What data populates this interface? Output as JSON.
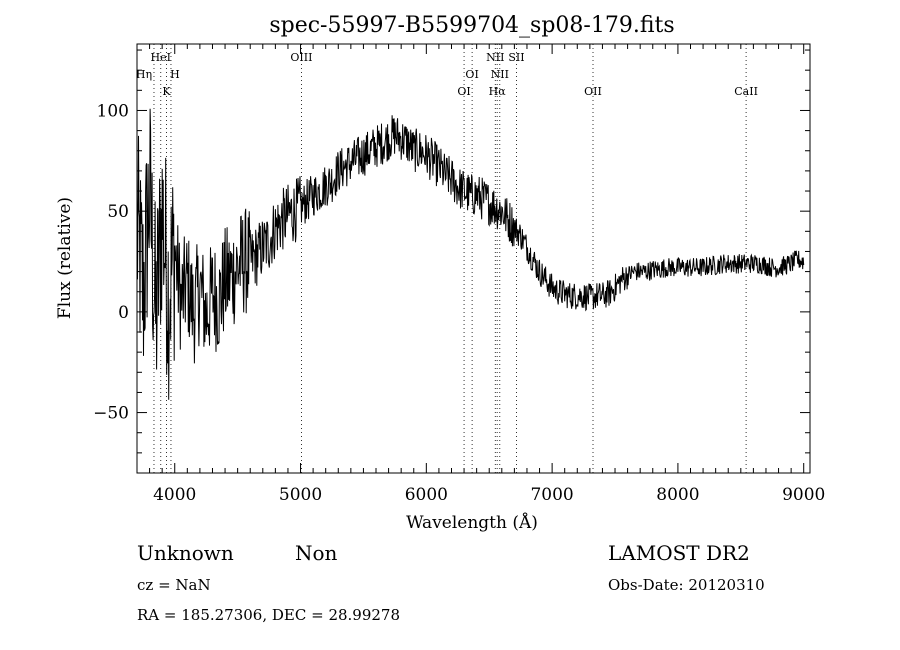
{
  "chart_data": {
    "type": "line",
    "title": "spec-55997-B5599704_sp08-179.fits",
    "xlabel": "Wavelength (Å)",
    "ylabel": "Flux (relative)",
    "xlim": [
      3700,
      9050
    ],
    "ylim": [
      -80,
      133
    ],
    "x_ticks": [
      4000,
      5000,
      6000,
      7000,
      8000,
      9000
    ],
    "y_ticks": [
      -50,
      0,
      50,
      100
    ],
    "grid": false,
    "line_color": "#000000",
    "spectral_lines": [
      {
        "label": "Hη",
        "wavelength": 3835
      },
      {
        "label": "HeI",
        "wavelength": 3889
      },
      {
        "label": "H",
        "wavelength": 3970
      },
      {
        "label": "K",
        "wavelength": 3934
      },
      {
        "label": "OIII",
        "wavelength": 5007
      },
      {
        "label": "OI",
        "wavelength": 6300
      },
      {
        "label": "OI",
        "wavelength": 6364
      },
      {
        "label": "NII",
        "wavelength": 6548
      },
      {
        "label": "Hα",
        "wavelength": 6563
      },
      {
        "label": "NII",
        "wavelength": 6584
      },
      {
        "label": "SII",
        "wavelength": 6717
      },
      {
        "label": "OII",
        "wavelength": 7325
      },
      {
        "label": "CaII",
        "wavelength": 8542
      }
    ],
    "series": [
      {
        "x": [
          3700,
          3750,
          3800,
          3850,
          3900,
          3950,
          4000,
          4050,
          4100,
          4150,
          4200,
          4250,
          4300,
          4350,
          4400,
          4450,
          4500,
          4550,
          4600,
          4650,
          4700,
          4750,
          4800,
          4850,
          4900,
          4950,
          5000,
          5050,
          5100,
          5150,
          5200,
          5250,
          5300,
          5350,
          5400,
          5450,
          5500,
          5550,
          5600,
          5650,
          5700,
          5750,
          5800,
          5850,
          5900,
          5950,
          6000,
          6050,
          6100,
          6150,
          6200,
          6250,
          6300,
          6350,
          6400,
          6450,
          6500,
          6550,
          6600,
          6650,
          6700,
          6750,
          6800,
          6850,
          6900,
          6950,
          7000,
          7050,
          7100,
          7150,
          7200,
          7250,
          7300,
          7350,
          7400,
          7450,
          7500,
          7550,
          7600,
          7650,
          7700,
          7750,
          7800,
          7850,
          7900,
          7950,
          8000,
          8050,
          8100,
          8150,
          8200,
          8250,
          8300,
          8350,
          8400,
          8450,
          8500,
          8550,
          8600,
          8650,
          8700,
          8750,
          8800,
          8850,
          8900,
          8950,
          9000
        ],
        "y": [
          40,
          10,
          60,
          -5,
          50,
          10,
          30,
          5,
          15,
          0,
          12,
          -2,
          10,
          5,
          15,
          18,
          22,
          25,
          25,
          28,
          32,
          35,
          42,
          45,
          48,
          50,
          52,
          55,
          58,
          60,
          63,
          65,
          70,
          72,
          74,
          76,
          78,
          80,
          82,
          84,
          86,
          88,
          86,
          84,
          80,
          80,
          78,
          75,
          72,
          68,
          66,
          62,
          60,
          58,
          58,
          56,
          54,
          52,
          50,
          46,
          42,
          38,
          32,
          26,
          20,
          16,
          12,
          10,
          9,
          8,
          8,
          8,
          7,
          8,
          8,
          9,
          12,
          16,
          18,
          20,
          20,
          20,
          21,
          21,
          22,
          22,
          22,
          22,
          22,
          22,
          22,
          23,
          23,
          24,
          24,
          24,
          24,
          24,
          24,
          24,
          23,
          22,
          22,
          23,
          24,
          26,
          25
        ]
      }
    ]
  },
  "info": {
    "class_label": "Unknown",
    "subclass_label": "Non",
    "survey": "LAMOST DR2",
    "redshift": "cz = NaN",
    "obs_date": "Obs-Date: 20120310",
    "coords": "RA = 185.27306, DEC =  28.99278"
  }
}
